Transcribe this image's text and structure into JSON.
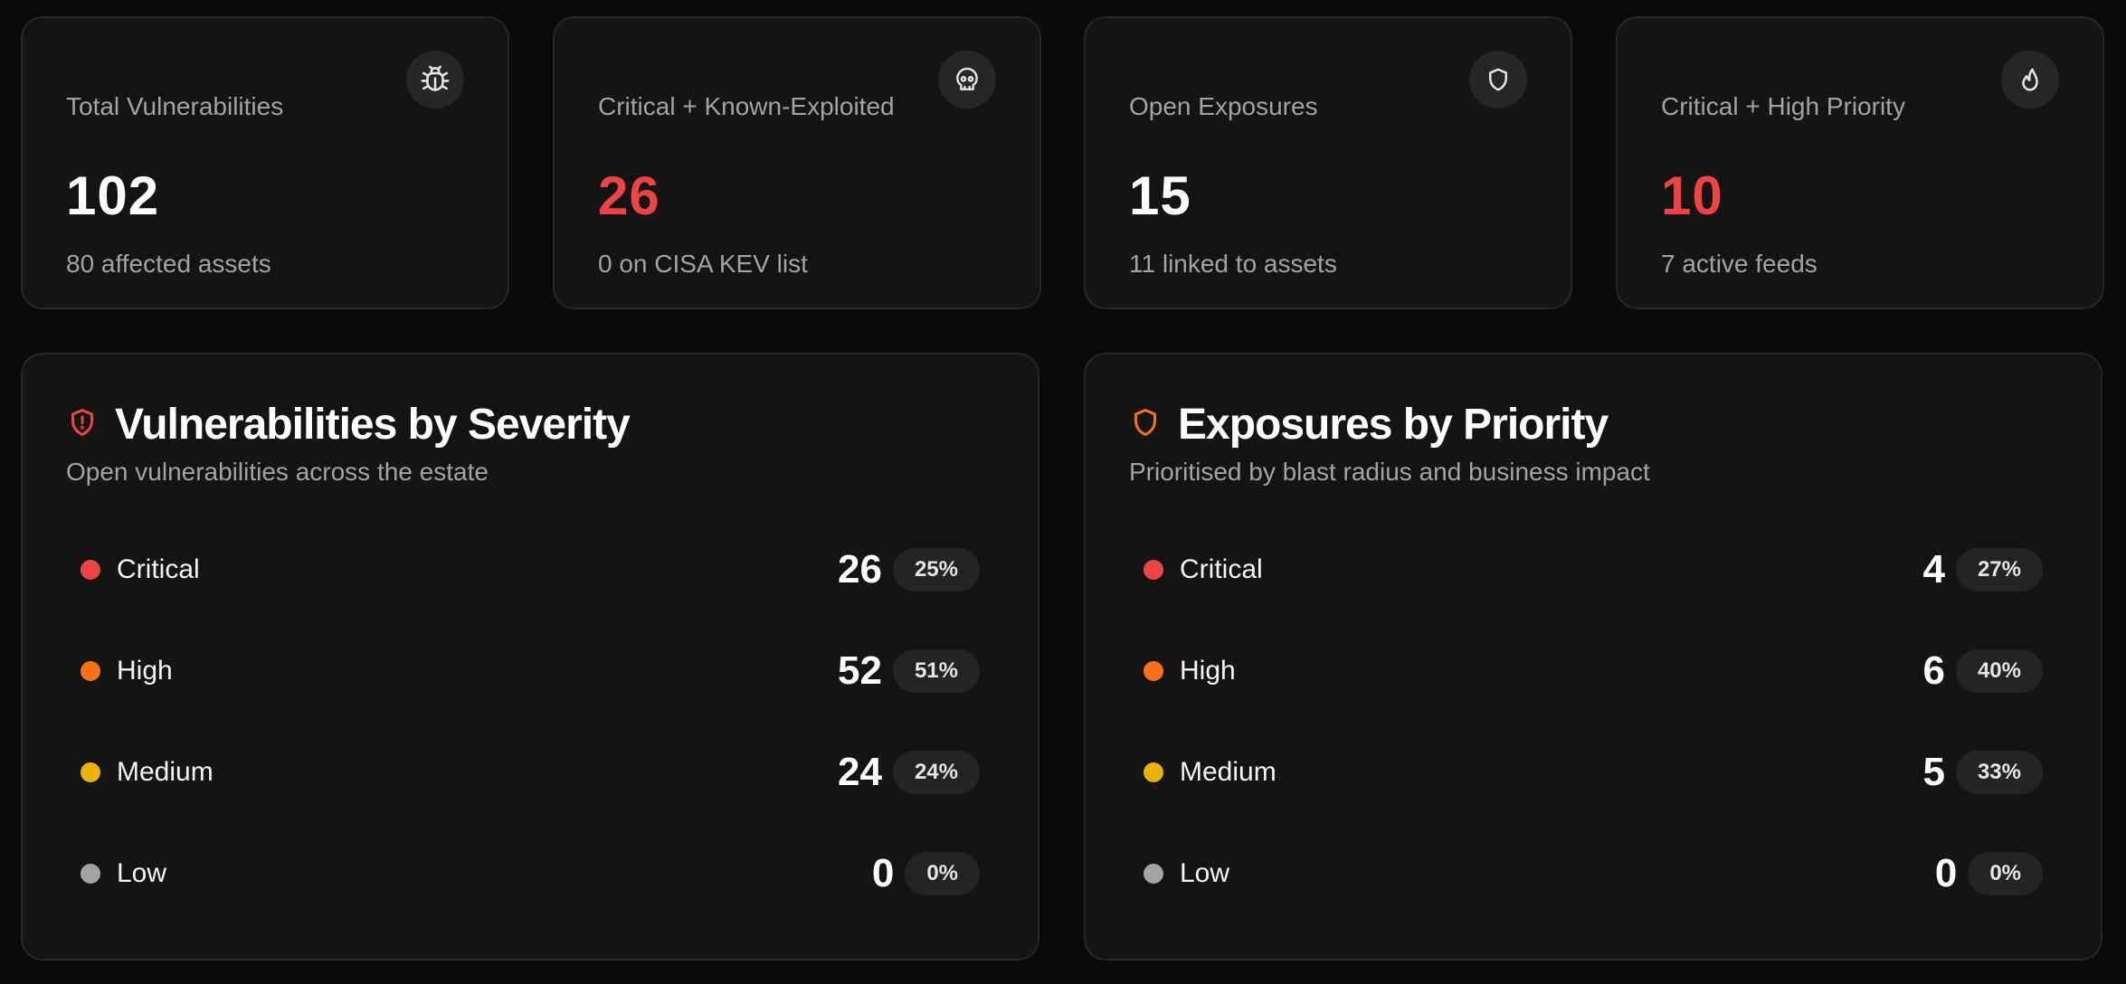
{
  "stats": [
    {
      "label": "Total Vulnerabilities",
      "value": "102",
      "sub": "80 affected assets",
      "icon": "bug-icon",
      "value_color": "#ffffff"
    },
    {
      "label": "Critical + Known-Exploited",
      "value": "26",
      "sub": "0 on CISA KEV list",
      "icon": "skull-icon",
      "value_color": "#ef4444"
    },
    {
      "label": "Open Exposures",
      "value": "15",
      "sub": "11 linked to assets",
      "icon": "shield-icon",
      "value_color": "#ffffff"
    },
    {
      "label": "Critical + High Priority",
      "value": "10",
      "sub": "7 active feeds",
      "icon": "flame-icon",
      "value_color": "#ef4444"
    }
  ],
  "severity_panel": {
    "title": "Vulnerabilities by Severity",
    "subtitle": "Open vulnerabilities across the estate",
    "icon": "shield-alert-icon",
    "icon_color": "#ef4444",
    "rows": [
      {
        "label": "Critical",
        "count": "26",
        "percent": "25%",
        "color": "#ef4444"
      },
      {
        "label": "High",
        "count": "52",
        "percent": "51%",
        "color": "#f97316"
      },
      {
        "label": "Medium",
        "count": "24",
        "percent": "24%",
        "color": "#eab308"
      },
      {
        "label": "Low",
        "count": "0",
        "percent": "0%",
        "color": "#a3a3a3"
      }
    ]
  },
  "priority_panel": {
    "title": "Exposures by Priority",
    "subtitle": "Prioritised by blast radius and business impact",
    "icon": "shield-icon",
    "icon_color": "#f97316",
    "rows": [
      {
        "label": "Critical",
        "count": "4",
        "percent": "27%",
        "color": "#ef4444"
      },
      {
        "label": "High",
        "count": "6",
        "percent": "40%",
        "color": "#f97316"
      },
      {
        "label": "Medium",
        "count": "5",
        "percent": "33%",
        "color": "#eab308"
      },
      {
        "label": "Low",
        "count": "0",
        "percent": "0%",
        "color": "#a3a3a3"
      }
    ]
  }
}
